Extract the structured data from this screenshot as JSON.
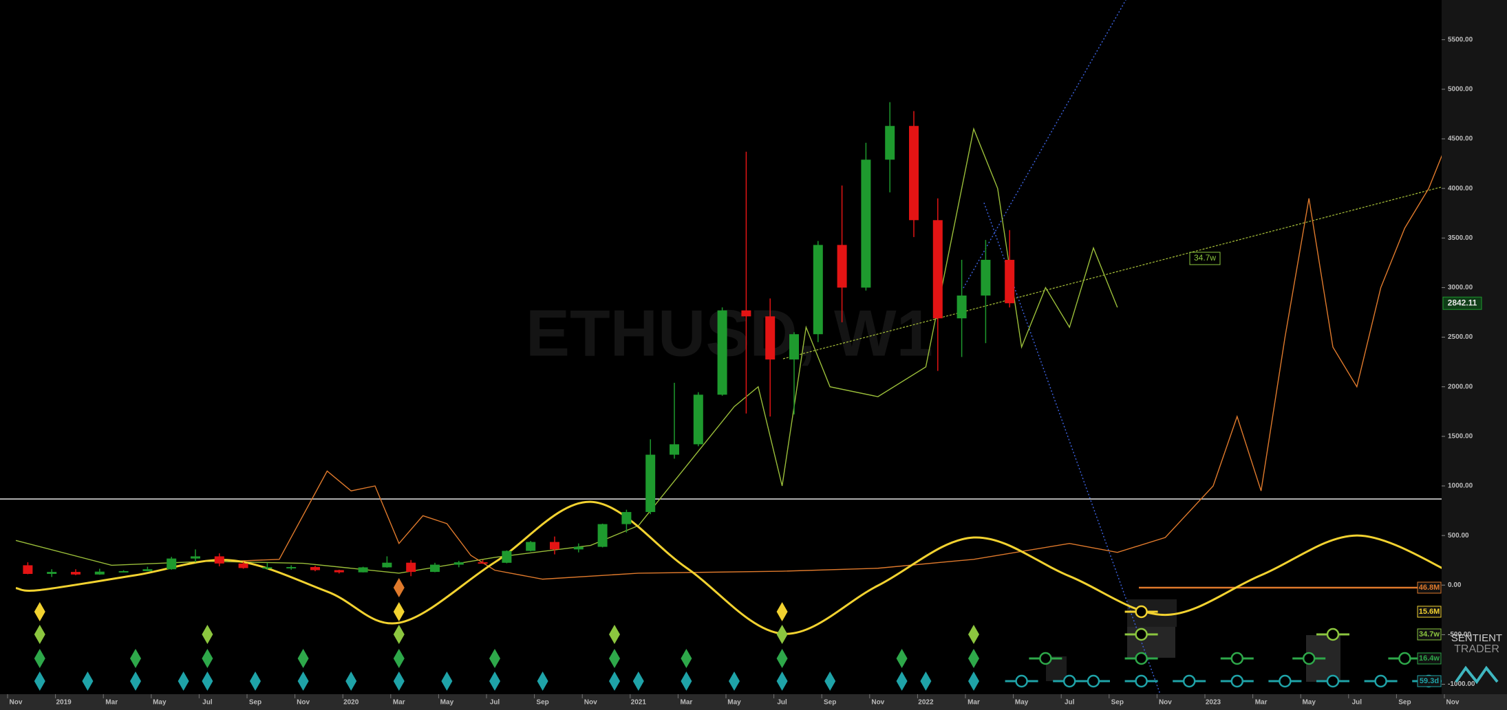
{
  "chart_data": {
    "type": "candlestick",
    "title": "ETHUSD, W1",
    "brand": [
      "SENTIENT",
      "TRADER"
    ],
    "categories": [
      "Nov",
      "2019",
      "Mar",
      "May",
      "Jul",
      "Sep",
      "Nov",
      "2020",
      "Mar",
      "May",
      "Jul",
      "Sep",
      "Nov",
      "2021",
      "Mar",
      "May",
      "Jul",
      "Sep",
      "Nov",
      "2022",
      "Mar",
      "May",
      "Jul",
      "Sep",
      "Nov",
      "2023",
      "Mar",
      "May",
      "Jul",
      "Sep",
      "Nov"
    ],
    "ylim": [
      -1100,
      5900
    ],
    "yticks": [
      {
        "value": 5500,
        "label": "5500.00"
      },
      {
        "value": 5000,
        "label": "5000.00"
      },
      {
        "value": 4500,
        "label": "4500.00"
      },
      {
        "value": 4000,
        "label": "4000.00"
      },
      {
        "value": 3500,
        "label": "3500.00"
      },
      {
        "value": 3000,
        "label": "3000.00"
      },
      {
        "value": 2500,
        "label": "2500.00"
      },
      {
        "value": 2000,
        "label": "2000.00"
      },
      {
        "value": 1500,
        "label": "1500.00"
      },
      {
        "value": 1000,
        "label": "1000.00"
      },
      {
        "value": 500,
        "label": "500.00"
      },
      {
        "value": 0,
        "label": "0.00"
      },
      {
        "value": -500,
        "label": "-500.00"
      },
      {
        "value": -1000,
        "label": "-1000.00"
      }
    ],
    "candles": {
      "up_color": "#1e9a2e",
      "down_color": "#e31414",
      "x": [
        "2018-11",
        "2018-12",
        "2019-01",
        "2019-02",
        "2019-03",
        "2019-04",
        "2019-05",
        "2019-06",
        "2019-07",
        "2019-08",
        "2019-09",
        "2019-10",
        "2019-11",
        "2019-12",
        "2020-01",
        "2020-02",
        "2020-03",
        "2020-04",
        "2020-05",
        "2020-06",
        "2020-07",
        "2020-08",
        "2020-09",
        "2020-10",
        "2020-11",
        "2020-12",
        "2021-01",
        "2021-02",
        "2021-03",
        "2021-04",
        "2021-05",
        "2021-06",
        "2021-07",
        "2021-08",
        "2021-09",
        "2021-10",
        "2021-11",
        "2021-12",
        "2022-01",
        "2022-02",
        "2022-03",
        "2022-04"
      ],
      "open": [
        200,
        113,
        133,
        107,
        136,
        141,
        160,
        268,
        290,
        218,
        172,
        180,
        182,
        151,
        129,
        179,
        226,
        133,
        206,
        230,
        225,
        345,
        435,
        360,
        386,
        615,
        737,
        1315,
        1420,
        1920,
        2770,
        2710,
        2275,
        2530,
        3430,
        3000,
        4290,
        4630,
        3680,
        2690,
        2920,
        3280
      ],
      "high": [
        230,
        160,
        160,
        165,
        150,
        185,
        285,
        360,
        320,
        235,
        225,
        200,
        195,
        155,
        185,
        290,
        253,
        225,
        245,
        255,
        350,
        445,
        490,
        420,
        620,
        760,
        1470,
        2040,
        1945,
        2800,
        4370,
        2890,
        2550,
        3470,
        4030,
        4460,
        4870,
        4780,
        3900,
        3280,
        3480,
        3580
      ],
      "low": [
        110,
        82,
        100,
        104,
        130,
        140,
        155,
        230,
        190,
        165,
        155,
        155,
        140,
        117,
        128,
        176,
        90,
        130,
        180,
        215,
        220,
        340,
        310,
        330,
        380,
        530,
        715,
        1275,
        1400,
        1910,
        1730,
        1700,
        1720,
        2450,
        2650,
        2970,
        3960,
        3510,
        2160,
        2300,
        2440,
        2800
      ],
      "close": [
        113,
        133,
        107,
        136,
        141,
        160,
        268,
        290,
        218,
        172,
        180,
        182,
        151,
        129,
        179,
        226,
        133,
        206,
        230,
        225,
        345,
        435,
        360,
        386,
        615,
        737,
        1315,
        1420,
        1920,
        2770,
        2710,
        2275,
        2530,
        3430,
        3000,
        4290,
        4630,
        3680,
        2690,
        2920,
        3280,
        2842.11
      ]
    },
    "series": [
      {
        "color": "#9bbf3a",
        "smooth": false,
        "x": [
          "2018-11",
          "2019-03",
          "2019-07",
          "2019-11",
          "2020-03",
          "2020-07",
          "2020-11",
          "2021-01",
          "2021-03",
          "2021-05",
          "2021-06",
          "2021-07",
          "2021-08",
          "2021-09",
          "2021-11",
          "2022-01",
          "2022-03",
          "2022-04",
          "2022-05",
          "2022-06",
          "2022-07",
          "2022-08",
          "2022-09"
        ],
        "values": [
          450,
          200,
          240,
          220,
          120,
          280,
          400,
          600,
          1200,
          1800,
          2000,
          1000,
          2600,
          2000,
          1900,
          2200,
          4600,
          4000,
          2400,
          3000,
          2600,
          3400,
          2800
        ]
      },
      {
        "color": "#e07a2c",
        "smooth": false,
        "x": [
          "2019-08",
          "2019-10",
          "2019-12",
          "2020-01",
          "2020-02",
          "2020-03",
          "2020-04",
          "2020-05",
          "2020-06",
          "2020-07",
          "2020-09",
          "2021-01",
          "2021-07",
          "2021-11",
          "2022-03",
          "2022-07",
          "2022-09",
          "2022-11",
          "2023-01",
          "2023-02",
          "2023-03",
          "2023-04",
          "2023-05",
          "2023-06",
          "2023-07",
          "2023-08",
          "2023-09",
          "2023-10",
          "2023-11"
        ],
        "values": [
          240,
          260,
          1150,
          950,
          1000,
          420,
          700,
          620,
          300,
          150,
          60,
          120,
          140,
          170,
          260,
          420,
          330,
          480,
          1000,
          1700,
          950,
          2500,
          3900,
          2400,
          2000,
          3000,
          3600,
          4000,
          4600
        ]
      },
      {
        "color": "#f2d230",
        "smooth": true,
        "x": [
          "2018-11",
          "2018-12",
          "2019-04",
          "2019-08",
          "2019-12",
          "2020-03",
          "2020-07",
          "2020-11",
          "2021-03",
          "2021-07",
          "2021-11",
          "2022-03",
          "2022-07",
          "2022-11",
          "2023-03",
          "2023-07",
          "2023-11"
        ],
        "values": [
          -30,
          -50,
          100,
          250,
          -65,
          -380,
          230,
          840,
          175,
          -490,
          -5,
          480,
          90,
          -300,
          100,
          500,
          120
        ]
      }
    ],
    "cycles": [
      {
        "name": "46.8M",
        "color": "#e07a2c",
        "troughs": [
          "2020-03"
        ],
        "projected": []
      },
      {
        "name": "15.6M",
        "color": "#f2d230",
        "troughs": [
          "2018-12",
          "2020-03",
          "2021-07"
        ],
        "projected": [
          "2022-10"
        ]
      },
      {
        "name": "34.7w",
        "color": "#8cc63f",
        "troughs": [
          "2018-12",
          "2019-07",
          "2020-03",
          "2020-12",
          "2021-07",
          "2022-03"
        ],
        "projected": [
          "2022-10",
          "2023-06"
        ]
      },
      {
        "name": "16.4w",
        "color": "#2ea84a",
        "troughs": [
          "2018-12",
          "2019-04",
          "2019-07",
          "2019-11",
          "2020-03",
          "2020-07",
          "2020-12",
          "2021-03",
          "2021-07",
          "2021-12",
          "2022-03"
        ],
        "projected": [
          "2022-06",
          "2022-10",
          "2023-02",
          "2023-05",
          "2023-09"
        ]
      },
      {
        "name": "59.3d",
        "color": "#1fa3a8",
        "troughs": [
          "2018-12",
          "2019-02",
          "2019-04",
          "2019-06",
          "2019-07",
          "2019-09",
          "2019-11",
          "2020-01",
          "2020-03",
          "2020-05",
          "2020-07",
          "2020-09",
          "2020-12",
          "2021-01",
          "2021-03",
          "2021-05",
          "2021-07",
          "2021-09",
          "2021-12",
          "2022-01",
          "2022-03"
        ],
        "projected": [
          "2022-05",
          "2022-07",
          "2022-08",
          "2022-10",
          "2022-12",
          "2023-02",
          "2023-04",
          "2023-06",
          "2023-08",
          "2023-10"
        ]
      }
    ]
  }
}
